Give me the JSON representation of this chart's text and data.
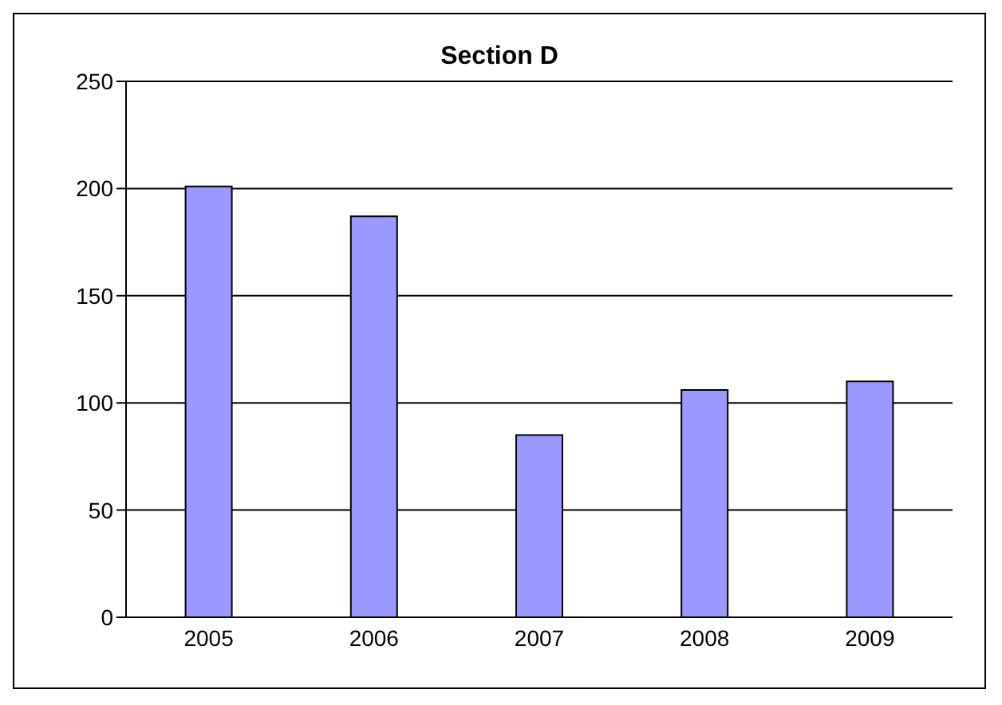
{
  "chart_data": {
    "type": "bar",
    "title": "Section D",
    "categories": [
      "2005",
      "2006",
      "2007",
      "2008",
      "2009"
    ],
    "values": [
      201,
      187,
      85,
      106,
      110
    ],
    "color": "#9999ff",
    "ylim": [
      0,
      250
    ],
    "yticks": [
      0,
      50,
      100,
      150,
      200,
      250
    ],
    "grid": "y",
    "legend": false
  }
}
